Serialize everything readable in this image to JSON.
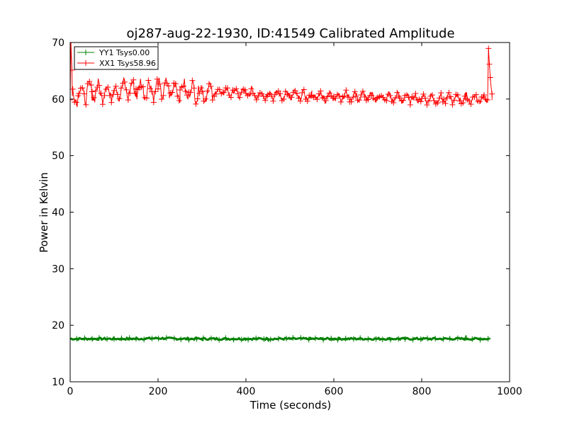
{
  "colors": {
    "yy1": "#008000",
    "xx1": "#ff0000",
    "axes": "#000000",
    "background": "#ffffff"
  },
  "chart_data": {
    "type": "line",
    "title": "oj287-aug-22-1930, ID:41549 Calibrated Amplitude",
    "xlabel": "Time (seconds)",
    "ylabel": "Power in Kelvin",
    "xlim": [
      0,
      1000
    ],
    "ylim": [
      10,
      70
    ],
    "xticks": [
      0,
      200,
      400,
      600,
      800,
      1000
    ],
    "yticks": [
      10,
      20,
      30,
      40,
      50,
      60,
      70
    ],
    "grid": false,
    "legend_position": "top-left",
    "marker": "plus",
    "series": [
      {
        "name": "YY1 Tsys0.00",
        "color": "#008000",
        "x": [
          0,
          50,
          100,
          150,
          200,
          250,
          300,
          350,
          400,
          450,
          500,
          550,
          600,
          650,
          700,
          750,
          800,
          850,
          900,
          955
        ],
        "y": [
          17.6,
          17.6,
          17.6,
          17.6,
          17.7,
          17.6,
          17.6,
          17.6,
          17.6,
          17.6,
          17.6,
          17.6,
          17.6,
          17.6,
          17.6,
          17.6,
          17.6,
          17.6,
          17.6,
          17.6
        ]
      },
      {
        "name": "XX1 Tsys58.96",
        "color": "#ff0000",
        "x": [
          0,
          2,
          5,
          20,
          50,
          100,
          150,
          200,
          250,
          300,
          350,
          400,
          450,
          500,
          550,
          600,
          650,
          700,
          750,
          800,
          850,
          900,
          940,
          950,
          952,
          955,
          960
        ],
        "y": [
          60.5,
          69.5,
          60.5,
          61.0,
          61.3,
          61.5,
          61.8,
          61.8,
          61.6,
          61.3,
          61.2,
          61.0,
          60.8,
          60.6,
          60.5,
          60.5,
          60.5,
          60.3,
          60.2,
          60.1,
          60.0,
          60.1,
          60.0,
          60.0,
          69.0,
          65.0,
          59.8
        ]
      }
    ]
  }
}
